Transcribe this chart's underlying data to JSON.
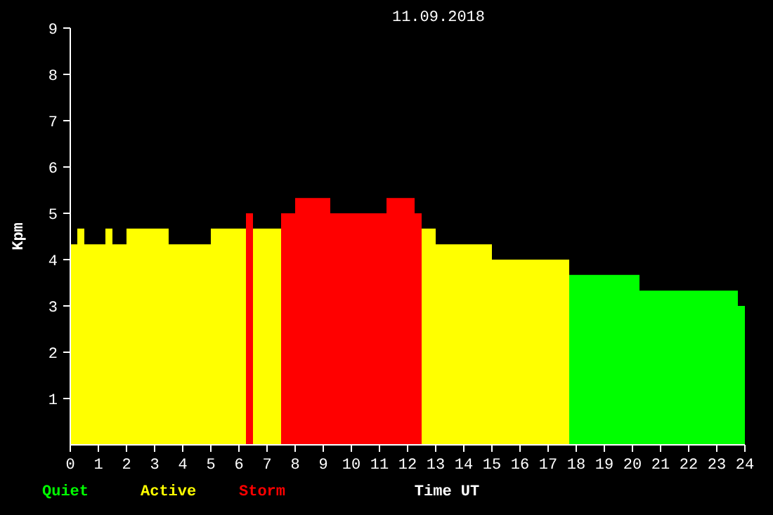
{
  "chart_data": {
    "type": "histogram",
    "title": "11.09.2018",
    "xlabel": "Time UT",
    "ylabel": "Kpm",
    "xlim": [
      0,
      24
    ],
    "xticks": [
      0,
      1,
      2,
      3,
      4,
      5,
      6,
      7,
      8,
      9,
      10,
      11,
      12,
      13,
      14,
      15,
      16,
      17,
      18,
      19,
      20,
      21,
      22,
      23,
      24
    ],
    "ylim": [
      0,
      9
    ],
    "yticks": [
      1,
      2,
      3,
      4,
      5,
      6,
      7,
      8,
      9
    ],
    "legend": "bottom left",
    "grid": false,
    "bins": [
      0,
      0.25,
      0.5,
      1.25,
      1.5,
      2,
      3.5,
      5,
      6.25,
      6.5,
      7.5,
      8,
      9.25,
      11.25,
      12.25,
      12.5,
      13,
      15,
      17.75,
      20.25,
      23.75,
      24
    ],
    "series": [
      {
        "name": "Quiet",
        "color": "#00ff00",
        "values": [
          null,
          null,
          null,
          null,
          null,
          null,
          null,
          null,
          null,
          null,
          null,
          null,
          null,
          null,
          null,
          null,
          null,
          null,
          3.67,
          3.33,
          3.0
        ]
      },
      {
        "name": "Active",
        "color": "#ffff00",
        "values": [
          4.33,
          4.67,
          4.33,
          4.67,
          4.33,
          4.67,
          4.33,
          4.67,
          null,
          4.67,
          null,
          null,
          null,
          null,
          null,
          4.67,
          4.33,
          4.0,
          null,
          null,
          null
        ]
      },
      {
        "name": "Storm",
        "color": "#ff0000",
        "values": [
          null,
          null,
          null,
          null,
          null,
          null,
          null,
          null,
          5.0,
          null,
          5.0,
          5.33,
          5.0,
          5.33,
          5.0,
          null,
          null,
          null,
          null,
          null,
          null
        ]
      }
    ]
  }
}
